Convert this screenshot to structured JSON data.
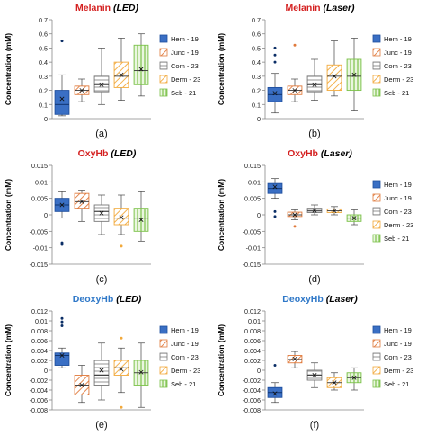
{
  "colors": {
    "Hem - 19": "#3a6fc4",
    "Junc - 19": "#e07a3c",
    "Com - 23": "#a6a6a6",
    "Derm - 23": "#f2a93b",
    "Seb - 21": "#7cc24a",
    "melanin_title": "#d42020",
    "oxyhb_title": "#d42020",
    "deoxyhb_title": "#2f78c8"
  },
  "chart_data": [
    {
      "type": "boxplot",
      "panel_label": "(a)",
      "title": "Melanin",
      "title_suffix": "LED",
      "title_color": "melanin_title",
      "ylabel": "Concentration (mM)",
      "ylim": [
        0,
        0.7
      ],
      "yticks": [
        0,
        0.1,
        0.2,
        0.3,
        0.4,
        0.5,
        0.6,
        0.7
      ],
      "ytick_labels": [
        "0",
        "0.1",
        "0.2",
        "0.3",
        "0.4",
        "0.5",
        "0.6",
        "0.7"
      ],
      "show_legend": true,
      "series": [
        {
          "name": "Hem - 19",
          "pattern": "solid",
          "min": 0.02,
          "q1": 0.03,
          "median": 0.1,
          "q3": 0.2,
          "max": 0.31,
          "mean": 0.14,
          "outliers": [
            0.55
          ]
        },
        {
          "name": "Junc - 19",
          "pattern": "hatch",
          "min": 0.12,
          "q1": 0.17,
          "median": 0.2,
          "q3": 0.23,
          "max": 0.28,
          "mean": 0.2,
          "outliers": []
        },
        {
          "name": "Com - 23",
          "pattern": "hgrid",
          "min": 0.1,
          "q1": 0.19,
          "median": 0.24,
          "q3": 0.3,
          "max": 0.5,
          "mean": 0.24,
          "outliers": []
        },
        {
          "name": "Derm - 23",
          "pattern": "hatch",
          "min": 0.13,
          "q1": 0.22,
          "median": 0.3,
          "q3": 0.4,
          "max": 0.57,
          "mean": 0.31,
          "outliers": []
        },
        {
          "name": "Seb - 21",
          "pattern": "vgrid",
          "min": 0.16,
          "q1": 0.24,
          "median": 0.34,
          "q3": 0.52,
          "max": 0.6,
          "mean": 0.35,
          "outliers": []
        }
      ]
    },
    {
      "type": "boxplot",
      "panel_label": "(b)",
      "title": "Melanin",
      "title_suffix": "Laser",
      "title_color": "melanin_title",
      "ylabel": "Concentration (mM)",
      "ylim": [
        0,
        0.7
      ],
      "yticks": [
        0,
        0.1,
        0.2,
        0.3,
        0.4,
        0.5,
        0.6,
        0.7
      ],
      "ytick_labels": [
        "0",
        "0.1",
        "0.2",
        "0.3",
        "0.4",
        "0.5",
        "0.6",
        "0.7"
      ],
      "show_legend": true,
      "series": [
        {
          "name": "Hem - 19",
          "pattern": "solid",
          "min": 0.04,
          "q1": 0.12,
          "median": 0.17,
          "q3": 0.22,
          "max": 0.32,
          "mean": 0.18,
          "outliers": [
            0.4,
            0.45,
            0.5
          ]
        },
        {
          "name": "Junc - 19",
          "pattern": "hatch",
          "min": 0.12,
          "q1": 0.17,
          "median": 0.2,
          "q3": 0.23,
          "max": 0.28,
          "mean": 0.2,
          "outliers": [
            0.52
          ]
        },
        {
          "name": "Com - 23",
          "pattern": "hgrid",
          "min": 0.13,
          "q1": 0.19,
          "median": 0.24,
          "q3": 0.3,
          "max": 0.42,
          "mean": 0.24,
          "outliers": []
        },
        {
          "name": "Derm - 23",
          "pattern": "hatch",
          "min": 0.16,
          "q1": 0.2,
          "median": 0.3,
          "q3": 0.38,
          "max": 0.55,
          "mean": 0.3,
          "outliers": []
        },
        {
          "name": "Seb - 21",
          "pattern": "vgrid",
          "min": 0.06,
          "q1": 0.2,
          "median": 0.3,
          "q3": 0.42,
          "max": 0.57,
          "mean": 0.31,
          "outliers": []
        }
      ]
    },
    {
      "type": "boxplot",
      "panel_label": "(c)",
      "title": "OxyHb",
      "title_suffix": "LED",
      "title_color": "oxyhb_title",
      "ylabel": "Concentration (mM)",
      "ylim": [
        -0.015,
        0.015
      ],
      "yticks": [
        -0.015,
        -0.01,
        -0.005,
        0,
        0.005,
        0.01,
        0.015
      ],
      "ytick_labels": [
        "-0.015",
        "-0.01",
        "-0.005",
        "0",
        "0.005",
        "0.01",
        "0.015"
      ],
      "show_legend": false,
      "series": [
        {
          "name": "Hem - 19",
          "pattern": "solid",
          "min": -0.001,
          "q1": 0.001,
          "median": 0.003,
          "q3": 0.005,
          "max": 0.007,
          "mean": 0.003,
          "outliers": [
            -0.0085,
            -0.009
          ]
        },
        {
          "name": "Junc - 19",
          "pattern": "hatch",
          "min": -0.002,
          "q1": 0.002,
          "median": 0.004,
          "q3": 0.0065,
          "max": 0.0075,
          "mean": 0.004,
          "outliers": []
        },
        {
          "name": "Com - 23",
          "pattern": "hgrid",
          "min": -0.006,
          "q1": -0.002,
          "median": 0.001,
          "q3": 0.003,
          "max": 0.006,
          "mean": 0.0005,
          "outliers": []
        },
        {
          "name": "Derm - 23",
          "pattern": "hatch",
          "min": -0.006,
          "q1": -0.003,
          "median": -0.001,
          "q3": 0.002,
          "max": 0.006,
          "mean": -0.0008,
          "outliers": [
            -0.0095
          ]
        },
        {
          "name": "Seb - 21",
          "pattern": "vgrid",
          "min": -0.008,
          "q1": -0.005,
          "median": -0.001,
          "q3": 0.002,
          "max": 0.007,
          "mean": -0.0015,
          "outliers": []
        }
      ]
    },
    {
      "type": "boxplot",
      "panel_label": "(d)",
      "title": "OxyHb",
      "title_suffix": "Laser",
      "title_color": "oxyhb_title",
      "ylabel": "Concentration (mM)",
      "ylim": [
        -0.015,
        0.015
      ],
      "yticks": [
        -0.015,
        -0.01,
        -0.005,
        0,
        0.005,
        0.01,
        0.015
      ],
      "ytick_labels": [
        "-0.015",
        "-0.01",
        "-0.005",
        "0",
        "0.005",
        "0.01",
        "0.015"
      ],
      "show_legend": true,
      "series": [
        {
          "name": "Hem - 19",
          "pattern": "solid",
          "min": 0.005,
          "q1": 0.0065,
          "median": 0.008,
          "q3": 0.0095,
          "max": 0.011,
          "mean": 0.0085,
          "outliers": [
            0.001,
            -0.0005
          ]
        },
        {
          "name": "Junc - 19",
          "pattern": "hatch",
          "min": -0.0015,
          "q1": -0.0005,
          "median": 0,
          "q3": 0.0008,
          "max": 0.0015,
          "mean": 0,
          "outliers": [
            -0.0035
          ]
        },
        {
          "name": "Com - 23",
          "pattern": "hgrid",
          "min": 0,
          "q1": 0.0007,
          "median": 0.0013,
          "q3": 0.002,
          "max": 0.003,
          "mean": 0.0013,
          "outliers": []
        },
        {
          "name": "Derm - 23",
          "pattern": "hatch",
          "min": 0,
          "q1": 0.0007,
          "median": 0.0012,
          "q3": 0.0018,
          "max": 0.0025,
          "mean": 0.0012,
          "outliers": []
        },
        {
          "name": "Seb - 21",
          "pattern": "vgrid",
          "min": -0.003,
          "q1": -0.002,
          "median": -0.001,
          "q3": 0,
          "max": 0.0015,
          "mean": -0.001,
          "outliers": []
        }
      ]
    },
    {
      "type": "boxplot",
      "panel_label": "(e)",
      "title": "DeoxyHb",
      "title_suffix": "LED",
      "title_color": "deoxyhb_title",
      "ylabel": "Concentration (mM)",
      "ylim": [
        -0.008,
        0.012
      ],
      "yticks": [
        -0.008,
        -0.006,
        -0.004,
        -0.002,
        0,
        0.002,
        0.004,
        0.006,
        0.008,
        0.01,
        0.012
      ],
      "ytick_labels": [
        "-0.008",
        "-0.006",
        "-0.004",
        "-0.002",
        "0",
        "0.002",
        "0.004",
        "0.006",
        "0.008",
        "0.01",
        "0.012"
      ],
      "show_legend": true,
      "series": [
        {
          "name": "Hem - 19",
          "pattern": "solid",
          "min": 0.0005,
          "q1": 0.001,
          "median": 0.003,
          "q3": 0.0035,
          "max": 0.0045,
          "mean": 0.003,
          "outliers": [
            0.009,
            0.0098,
            0.0105
          ]
        },
        {
          "name": "Junc - 19",
          "pattern": "hatch",
          "min": -0.0065,
          "q1": -0.005,
          "median": -0.003,
          "q3": -0.001,
          "max": 0.001,
          "mean": -0.003,
          "outliers": []
        },
        {
          "name": "Com - 23",
          "pattern": "hgrid",
          "min": -0.006,
          "q1": -0.003,
          "median": -0.001,
          "q3": 0.002,
          "max": 0.0055,
          "mean": 0,
          "outliers": []
        },
        {
          "name": "Derm - 23",
          "pattern": "hatch",
          "min": -0.0045,
          "q1": -0.001,
          "median": 0.0005,
          "q3": 0.002,
          "max": 0.0045,
          "mean": 0.0002,
          "outliers": [
            0.0065,
            -0.0075
          ]
        },
        {
          "name": "Seb - 21",
          "pattern": "vgrid",
          "min": -0.0075,
          "q1": -0.003,
          "median": -0.0005,
          "q3": 0.002,
          "max": 0.0055,
          "mean": -0.0004,
          "outliers": []
        }
      ]
    },
    {
      "type": "boxplot",
      "panel_label": "(f)",
      "title": "DeoxyHb",
      "title_suffix": "Laser",
      "title_color": "deoxyhb_title",
      "ylabel": "Concentration (mM)",
      "ylim": [
        -0.008,
        0.012
      ],
      "yticks": [
        -0.008,
        -0.006,
        -0.004,
        -0.002,
        0,
        0.002,
        0.004,
        0.006,
        0.008,
        0.01,
        0.012
      ],
      "ytick_labels": [
        "-0.008",
        "-0.006",
        "-0.004",
        "-0.002",
        "0",
        "0.002",
        "0.004",
        "0.006",
        "0.008",
        "0.01",
        "0.012"
      ],
      "show_legend": true,
      "series": [
        {
          "name": "Hem - 19",
          "pattern": "solid",
          "min": -0.0065,
          "q1": -0.0055,
          "median": -0.0045,
          "q3": -0.0035,
          "max": -0.0025,
          "mean": -0.0047,
          "outliers": [
            0.001
          ]
        },
        {
          "name": "Junc - 19",
          "pattern": "hatch",
          "min": 0.0005,
          "q1": 0.0015,
          "median": 0.0022,
          "q3": 0.003,
          "max": 0.0038,
          "mean": 0.0023,
          "outliers": []
        },
        {
          "name": "Com - 23",
          "pattern": "hgrid",
          "min": -0.0035,
          "q1": -0.002,
          "median": -0.001,
          "q3": 0,
          "max": 0.0015,
          "mean": -0.001,
          "outliers": []
        },
        {
          "name": "Derm - 23",
          "pattern": "hatch",
          "min": -0.004,
          "q1": -0.0035,
          "median": -0.0025,
          "q3": -0.0015,
          "max": -0.0005,
          "mean": -0.0025,
          "outliers": []
        },
        {
          "name": "Seb - 21",
          "pattern": "vgrid",
          "min": -0.004,
          "q1": -0.0025,
          "median": -0.0015,
          "q3": -0.0005,
          "max": 0.0005,
          "mean": -0.0015,
          "outliers": []
        }
      ]
    }
  ]
}
